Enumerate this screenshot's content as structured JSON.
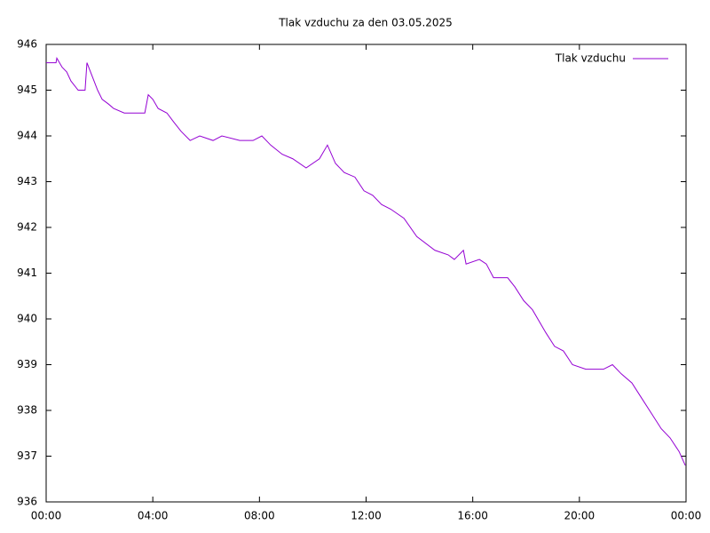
{
  "chart_data": {
    "type": "line",
    "title": "Tlak vzduchu za den 03.05.2025",
    "legend": "top-right",
    "grid": false,
    "xlim": [
      0,
      24
    ],
    "xticks": [
      {
        "value": 0,
        "label": "00:00"
      },
      {
        "value": 4,
        "label": "04:00"
      },
      {
        "value": 8,
        "label": "08:00"
      },
      {
        "value": 12,
        "label": "12:00"
      },
      {
        "value": 16,
        "label": "16:00"
      },
      {
        "value": 20,
        "label": "20:00"
      },
      {
        "value": 24,
        "label": "00:00"
      }
    ],
    "ylim": [
      936,
      946
    ],
    "yticks": [
      936,
      937,
      938,
      939,
      940,
      941,
      942,
      943,
      944,
      945,
      946
    ],
    "series": [
      {
        "name": "Tlak vzduchu",
        "color": "#9400d3",
        "x": [
          0,
          0.37,
          0.4,
          0.6,
          0.77,
          0.93,
          1.2,
          1.46,
          1.53,
          1.73,
          1.93,
          2.1,
          2.33,
          2.53,
          2.93,
          3.26,
          3.7,
          3.83,
          4.0,
          4.2,
          4.53,
          4.79,
          5.06,
          5.4,
          5.76,
          6.26,
          6.59,
          7.26,
          7.76,
          8.09,
          8.42,
          8.85,
          9.25,
          9.75,
          10.25,
          10.55,
          10.85,
          11.18,
          11.58,
          11.92,
          12.25,
          12.58,
          12.92,
          13.42,
          13.9,
          14.58,
          15.08,
          15.31,
          15.65,
          15.75,
          16.25,
          16.51,
          16.78,
          17.31,
          17.58,
          17.91,
          18.24,
          18.74,
          19.07,
          19.4,
          19.74,
          20.24,
          20.57,
          20.9,
          21.24,
          21.57,
          21.97,
          22.3,
          22.74,
          23.07,
          23.4,
          23.74,
          23.97
        ],
        "values": [
          945.6,
          945.6,
          945.7,
          945.5,
          945.4,
          945.2,
          945.0,
          945.0,
          945.6,
          945.3,
          945.0,
          944.8,
          944.7,
          944.6,
          944.5,
          944.5,
          944.5,
          944.9,
          944.8,
          944.6,
          944.5,
          944.3,
          944.1,
          943.9,
          944.0,
          943.9,
          944.0,
          943.9,
          943.9,
          944.0,
          943.8,
          943.6,
          943.5,
          943.3,
          943.5,
          943.8,
          943.4,
          943.2,
          943.1,
          942.8,
          942.7,
          942.5,
          942.4,
          942.2,
          941.8,
          941.5,
          941.4,
          941.3,
          941.5,
          941.2,
          941.3,
          941.2,
          940.9,
          940.9,
          940.7,
          940.4,
          940.2,
          939.7,
          939.4,
          939.3,
          939.0,
          938.9,
          938.9,
          938.9,
          939.0,
          938.8,
          938.6,
          938.3,
          937.9,
          937.6,
          937.4,
          937.1,
          936.8
        ]
      }
    ]
  }
}
